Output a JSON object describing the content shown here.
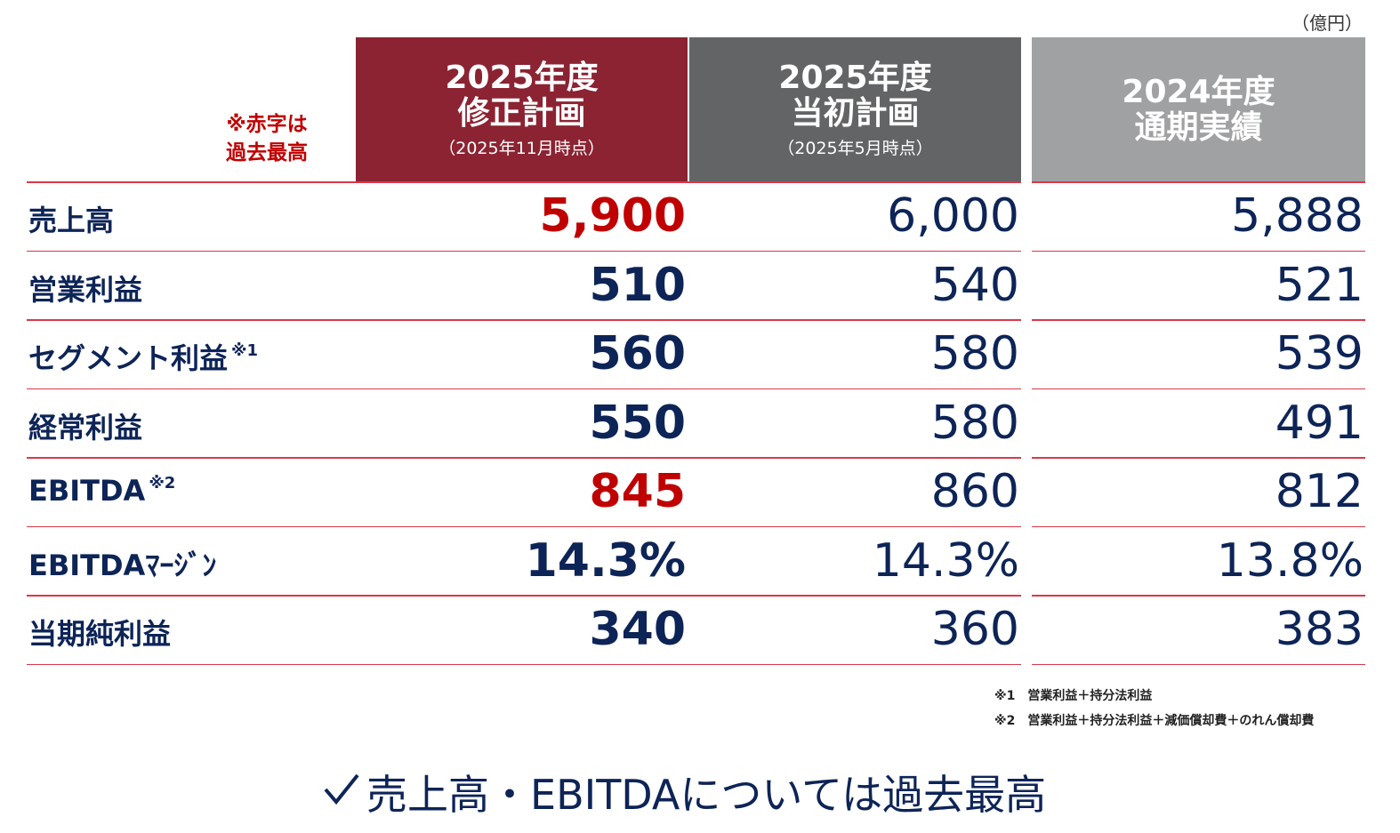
{
  "unit": "（億円）",
  "legend_note": [
    "※赤字は",
    "過去最高"
  ],
  "columns": [
    {
      "title": [
        "2025年度",
        "修正計画"
      ],
      "subtitle": "（2025年11月時点）",
      "color": "#8b2332"
    },
    {
      "title": [
        "2025年度",
        "当初計画"
      ],
      "subtitle": "（2025年5月時点）",
      "color": "#636466"
    },
    {
      "title": [
        "2024年度",
        "通期実績"
      ],
      "color": "#a0a1a3"
    }
  ],
  "rows": [
    {
      "label": "売上高",
      "values": [
        "5,900",
        "6,000",
        "5,888"
      ],
      "record_high": true
    },
    {
      "label": "営業利益",
      "values": [
        "510",
        "540",
        "521"
      ]
    },
    {
      "label": "セグメント利益",
      "note": "※1",
      "values": [
        "560",
        "580",
        "539"
      ]
    },
    {
      "label": "経常利益",
      "values": [
        "550",
        "580",
        "491"
      ]
    },
    {
      "label": "EBITDA",
      "note": "※2",
      "values": [
        "845",
        "860",
        "812"
      ],
      "record_high": true
    },
    {
      "label": "EBITDAﾏｰｼﾞﾝ",
      "values": [
        "14.3%",
        "14.3%",
        "13.8%"
      ]
    },
    {
      "label": "当期純利益",
      "values": [
        "340",
        "360",
        "383"
      ]
    }
  ],
  "footnotes": [
    "※1　営業利益＋持分法利益",
    "※2　営業利益＋持分法利益＋減価償却費＋のれん償却費"
  ],
  "conclusion": "売上高・EBITDAについては過去最高"
}
